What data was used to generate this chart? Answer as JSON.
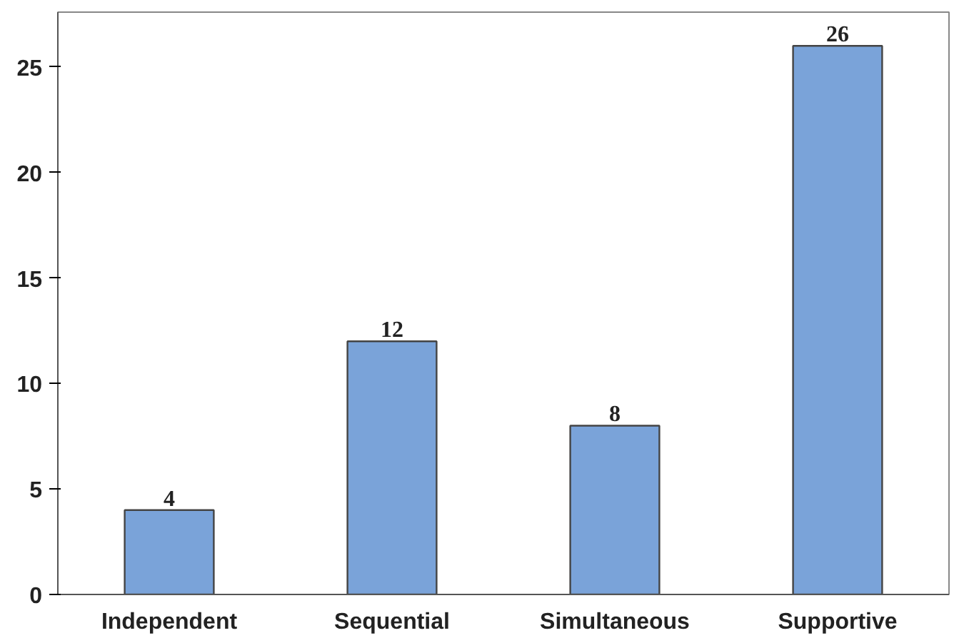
{
  "chart_data": {
    "type": "bar",
    "categories": [
      "Independent",
      "Sequential",
      "Simultaneous",
      "Supportive"
    ],
    "values": [
      4,
      12,
      8,
      26
    ],
    "color": "#7aa3d9",
    "ylim": [
      0,
      27.6
    ],
    "yticks": [
      0,
      5,
      10,
      15,
      20,
      25
    ],
    "grid": false,
    "data_labels": true
  }
}
